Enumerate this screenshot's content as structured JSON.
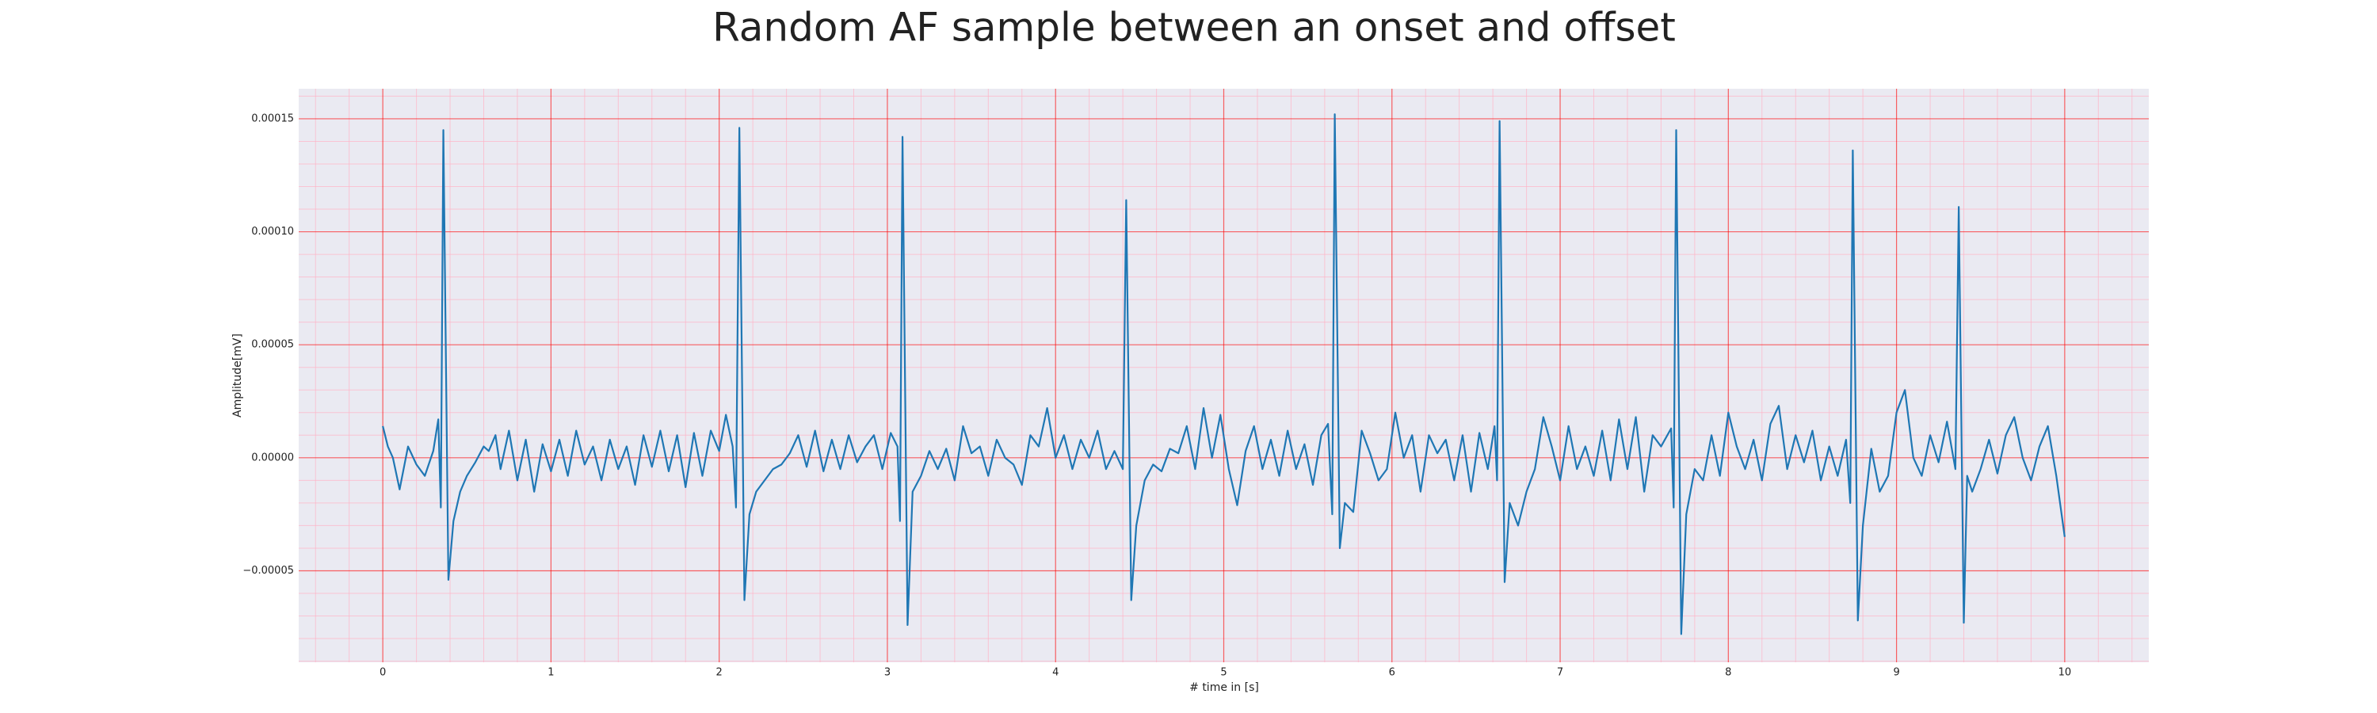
{
  "chart_data": {
    "type": "line",
    "title": "Random AF sample between an onset and offset",
    "xlabel": "# time in [s]",
    "ylabel": "Amplitude[mV]",
    "color": "#1f77b4",
    "background": "#eaeaf2",
    "grid": true,
    "grid_color": "#ff0000",
    "minor_grid_color": "#ffb3c6",
    "xlim": [
      -0.5,
      10.5
    ],
    "ylim": [
      -9.05e-05,
      0.0001633
    ],
    "xticks": [
      0,
      1,
      2,
      3,
      4,
      5,
      6,
      7,
      8,
      9,
      10
    ],
    "yticks": [
      {
        "value": -5e-05,
        "label": "−0.00005"
      },
      {
        "value": 0,
        "label": "0.00000"
      },
      {
        "value": 5e-05,
        "label": "0.00005"
      },
      {
        "value": 0.0001,
        "label": "0.00010"
      },
      {
        "value": 0.00015,
        "label": "0.00015"
      }
    ],
    "xminorticks": [
      -0.4,
      -0.2,
      0.2,
      0.4,
      0.6,
      0.8,
      1.2,
      1.4,
      1.6,
      1.8,
      2.2,
      2.4,
      2.6,
      2.8,
      3.2,
      3.4,
      3.6,
      3.8,
      4.2,
      4.4,
      4.6,
      4.8,
      5.2,
      5.4,
      5.6,
      5.8,
      6.2,
      6.4,
      6.6,
      6.8,
      7.2,
      7.4,
      7.6,
      7.8,
      8.2,
      8.4,
      8.6,
      8.8,
      9.2,
      9.4,
      9.6,
      9.8,
      10.2,
      10.4
    ],
    "yminorticks": [
      -9e-05,
      -8e-05,
      -7e-05,
      -6e-05,
      -4e-05,
      -3e-05,
      -2e-05,
      -1e-05,
      1e-05,
      2e-05,
      3e-05,
      4e-05,
      6e-05,
      7e-05,
      8e-05,
      9e-05,
      0.00011,
      0.00012,
      0.00013,
      0.00014,
      0.00016
    ],
    "x": [
      0,
      0.03,
      0.06,
      0.1,
      0.15,
      0.2,
      0.25,
      0.3,
      0.33,
      0.345,
      0.36,
      0.39,
      0.42,
      0.46,
      0.5,
      0.55,
      0.6,
      0.63,
      0.67,
      0.7,
      0.75,
      0.8,
      0.85,
      0.9,
      0.95,
      1.0,
      1.05,
      1.1,
      1.15,
      1.2,
      1.25,
      1.3,
      1.35,
      1.4,
      1.45,
      1.5,
      1.55,
      1.6,
      1.65,
      1.7,
      1.75,
      1.8,
      1.85,
      1.9,
      1.95,
      2.0,
      2.04,
      2.08,
      2.1,
      2.12,
      2.15,
      2.18,
      2.22,
      2.27,
      2.32,
      2.37,
      2.42,
      2.47,
      2.52,
      2.57,
      2.62,
      2.67,
      2.72,
      2.77,
      2.82,
      2.87,
      2.92,
      2.97,
      3.02,
      3.06,
      3.075,
      3.09,
      3.12,
      3.15,
      3.2,
      3.25,
      3.3,
      3.35,
      3.4,
      3.45,
      3.5,
      3.55,
      3.6,
      3.65,
      3.7,
      3.75,
      3.8,
      3.85,
      3.9,
      3.95,
      4.0,
      4.05,
      4.1,
      4.15,
      4.2,
      4.25,
      4.3,
      4.35,
      4.4,
      4.42,
      4.45,
      4.48,
      4.53,
      4.58,
      4.63,
      4.68,
      4.73,
      4.78,
      4.83,
      4.88,
      4.93,
      4.98,
      5.03,
      5.08,
      5.13,
      5.18,
      5.23,
      5.28,
      5.33,
      5.38,
      5.43,
      5.48,
      5.53,
      5.58,
      5.62,
      5.645,
      5.66,
      5.69,
      5.72,
      5.77,
      5.82,
      5.87,
      5.92,
      5.97,
      6.02,
      6.07,
      6.12,
      6.17,
      6.22,
      6.27,
      6.32,
      6.37,
      6.42,
      6.47,
      6.52,
      6.57,
      6.61,
      6.625,
      6.64,
      6.67,
      6.7,
      6.75,
      6.8,
      6.85,
      6.9,
      6.95,
      7.0,
      7.05,
      7.1,
      7.15,
      7.2,
      7.25,
      7.3,
      7.35,
      7.4,
      7.45,
      7.5,
      7.55,
      7.6,
      7.66,
      7.675,
      7.69,
      7.72,
      7.75,
      7.8,
      7.85,
      7.9,
      7.95,
      8.0,
      8.05,
      8.1,
      8.15,
      8.2,
      8.25,
      8.3,
      8.35,
      8.4,
      8.45,
      8.5,
      8.55,
      8.6,
      8.65,
      8.7,
      8.725,
      8.74,
      8.77,
      8.8,
      8.85,
      8.9,
      8.95,
      9.0,
      9.05,
      9.1,
      9.15,
      9.2,
      9.25,
      9.3,
      9.35,
      9.37,
      9.4,
      9.42,
      9.45,
      9.5,
      9.55,
      9.6,
      9.65,
      9.7,
      9.75,
      9.8,
      9.85,
      9.9,
      9.95,
      10.0
    ],
    "values": [
      1.4e-05,
      5e-06,
      0,
      -1.4e-05,
      5e-06,
      -3e-06,
      -8e-06,
      3e-06,
      1.7e-05,
      -2.2e-05,
      0.000145,
      -5.4e-05,
      -2.8e-05,
      -1.5e-05,
      -8e-06,
      -2e-06,
      5e-06,
      3e-06,
      1e-05,
      -5e-06,
      1.2e-05,
      -1e-05,
      8e-06,
      -1.5e-05,
      6e-06,
      -6e-06,
      8e-06,
      -8e-06,
      1.2e-05,
      -3e-06,
      5e-06,
      -1e-05,
      8e-06,
      -5e-06,
      5e-06,
      -1.2e-05,
      1e-05,
      -4e-06,
      1.2e-05,
      -6e-06,
      1e-05,
      -1.3e-05,
      1.1e-05,
      -8e-06,
      1.2e-05,
      3e-06,
      1.9e-05,
      5e-06,
      -2.2e-05,
      0.000146,
      -6.3e-05,
      -2.5e-05,
      -1.5e-05,
      -1e-05,
      -5e-06,
      -3e-06,
      2e-06,
      1e-05,
      -4e-06,
      1.2e-05,
      -6e-06,
      8e-06,
      -5e-06,
      1e-05,
      -2e-06,
      5e-06,
      1e-05,
      -5e-06,
      1.1e-05,
      5e-06,
      -2.8e-05,
      0.000142,
      -7.4e-05,
      -1.5e-05,
      -8e-06,
      3e-06,
      -5e-06,
      4e-06,
      -1e-05,
      1.4e-05,
      2e-06,
      5e-06,
      -8e-06,
      8e-06,
      0,
      -3e-06,
      -1.2e-05,
      1e-05,
      5e-06,
      2.2e-05,
      0,
      1e-05,
      -5e-06,
      8e-06,
      0,
      1.2e-05,
      -5e-06,
      3e-06,
      -5e-06,
      0.000114,
      -6.3e-05,
      -3e-05,
      -1e-05,
      -3e-06,
      -6e-06,
      4e-06,
      2e-06,
      1.4e-05,
      -5e-06,
      2.2e-05,
      0,
      1.9e-05,
      -5e-06,
      -2.1e-05,
      3e-06,
      1.4e-05,
      -5e-06,
      8e-06,
      -8e-06,
      1.2e-05,
      -5e-06,
      6e-06,
      -1.2e-05,
      1e-05,
      1.5e-05,
      -2.5e-05,
      0.000152,
      -4e-05,
      -2e-05,
      -2.4e-05,
      1.2e-05,
      2e-06,
      -1e-05,
      -5e-06,
      2e-05,
      0,
      1e-05,
      -1.5e-05,
      1e-05,
      2e-06,
      8e-06,
      -1e-05,
      1e-05,
      -1.5e-05,
      1.1e-05,
      -5e-06,
      1.4e-05,
      -1e-05,
      0.000149,
      -5.5e-05,
      -2e-05,
      -3e-05,
      -1.5e-05,
      -5e-06,
      1.8e-05,
      5e-06,
      -1e-05,
      1.4e-05,
      -5e-06,
      5e-06,
      -8e-06,
      1.2e-05,
      -1e-05,
      1.7e-05,
      -5e-06,
      1.8e-05,
      -1.5e-05,
      1e-05,
      5e-06,
      1.3e-05,
      -2.2e-05,
      0.000145,
      -7.8e-05,
      -2.5e-05,
      -5e-06,
      -1e-05,
      1e-05,
      -8e-06,
      2e-05,
      5e-06,
      -5e-06,
      8e-06,
      -1e-05,
      1.5e-05,
      2.3e-05,
      -5e-06,
      1e-05,
      -2e-06,
      1.2e-05,
      -1e-05,
      5e-06,
      -8e-06,
      8e-06,
      -2e-05,
      0.000136,
      -7.2e-05,
      -3e-05,
      4e-06,
      -1.5e-05,
      -8e-06,
      2e-05,
      3e-05,
      0,
      -8e-06,
      1e-05,
      -2e-06,
      1.6e-05,
      -5e-06,
      0.000111,
      -7.3e-05,
      -8e-06,
      -1.5e-05,
      -5e-06,
      8e-06,
      -7e-06,
      1e-05,
      1.8e-05,
      0,
      -1e-05,
      5e-06,
      1.4e-05,
      -8e-06,
      -3.5e-05
    ]
  }
}
